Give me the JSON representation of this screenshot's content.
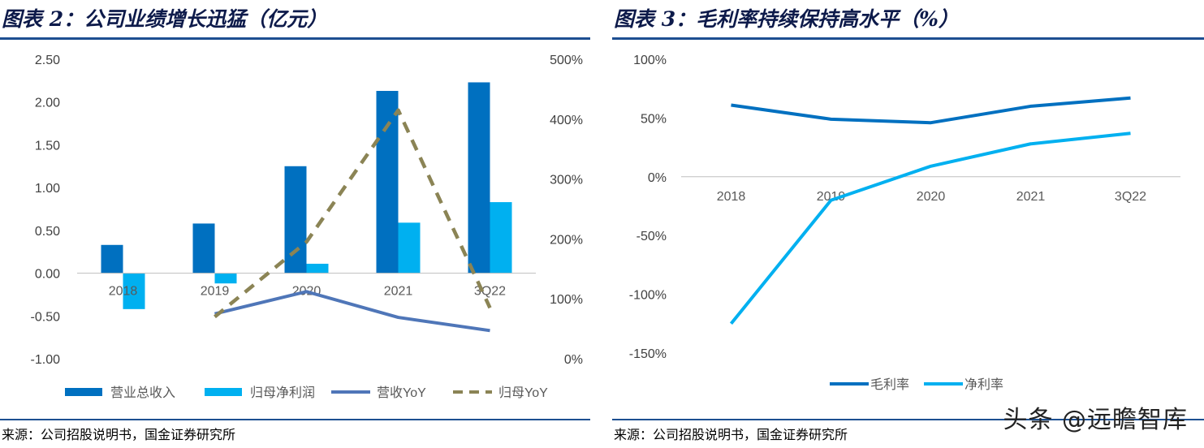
{
  "left_panel": {
    "title": "图表 2：公司业绩增长迅猛（亿元）",
    "source": "来源：公司招股说明书，国金证券研究所"
  },
  "right_panel": {
    "title": "图表 3：毛利率持续保持高水平（%）",
    "source": "来源：公司招股说明书，国金证券研究所"
  },
  "watermark": "头条 @远瞻智库",
  "chart_data": [
    {
      "type": "bar",
      "categories": [
        "2018",
        "2019",
        "2020",
        "2021",
        "3Q22"
      ],
      "ylim": [
        -1.0,
        2.5
      ],
      "y_ticks": [
        "2.50",
        "2.00",
        "1.50",
        "1.00",
        "0.50",
        "0.00",
        "-0.50",
        "-1.00"
      ],
      "y2lim": [
        0,
        500
      ],
      "y2_ticks": [
        "500%",
        "400%",
        "300%",
        "200%",
        "100%",
        "0%"
      ],
      "legend_position": "bottom",
      "grid": false,
      "series": [
        {
          "name": "营业总收入",
          "kind": "bar",
          "axis": "left",
          "color": "#0070c0",
          "values": [
            0.33,
            0.58,
            1.25,
            2.13,
            2.23
          ]
        },
        {
          "name": "归母净利润",
          "kind": "bar",
          "axis": "left",
          "color": "#00b0f0",
          "values": [
            -0.42,
            -0.12,
            0.11,
            0.59,
            0.83
          ]
        },
        {
          "name": "营收YoY",
          "kind": "line",
          "axis": "right",
          "color": "#4f76b8",
          "dashed": false,
          "values": [
            null,
            75,
            112,
            69,
            47
          ]
        },
        {
          "name": "归母YoY",
          "kind": "line",
          "axis": "right",
          "color": "#8b8455",
          "dashed": true,
          "values": [
            null,
            70,
            195,
            415,
            85
          ]
        }
      ]
    },
    {
      "type": "line",
      "categories": [
        "2018",
        "2019",
        "2020",
        "2021",
        "3Q22"
      ],
      "ylim": [
        -150,
        100
      ],
      "y_ticks": [
        "100%",
        "50%",
        "0%",
        "-50%",
        "-100%",
        "-150%"
      ],
      "legend_position": "bottom",
      "grid": false,
      "series": [
        {
          "name": "毛利率",
          "color": "#0070c0",
          "values": [
            61,
            49,
            46,
            60,
            67
          ]
        },
        {
          "name": "净利率",
          "color": "#00b0f0",
          "values": [
            -125,
            -20,
            9,
            28,
            37
          ]
        }
      ]
    }
  ]
}
